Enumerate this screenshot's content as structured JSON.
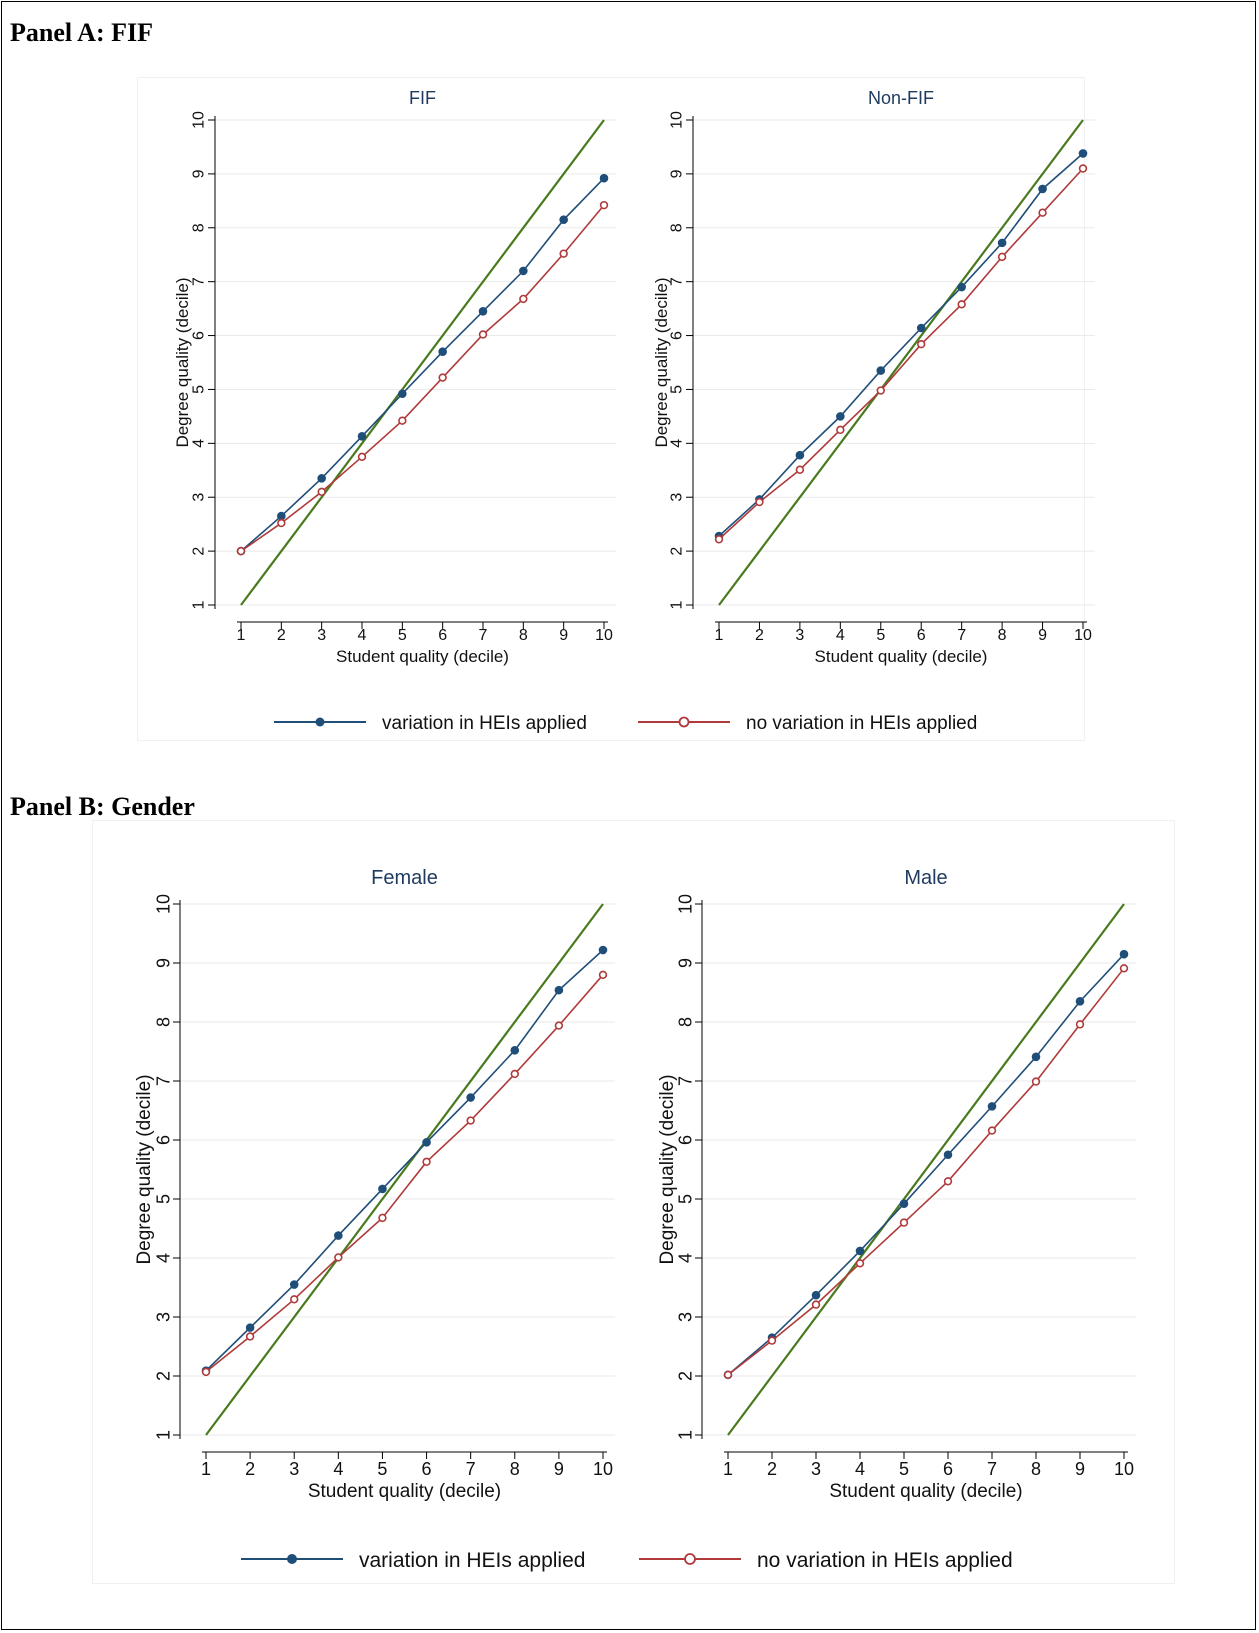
{
  "panels": [
    {
      "heading": "Panel A: FIF",
      "legend": {
        "series1": "variation in HEIs applied",
        "series2": "no variation in HEIs applied"
      }
    },
    {
      "heading": "Panel B: Gender",
      "legend": {
        "series1": "variation in HEIs applied",
        "series2": "no variation in HEIs applied"
      }
    }
  ],
  "colors": {
    "variation": "#1f4e79",
    "no_variation": "#b03a3a",
    "diagonal": "#4a7a1e",
    "grid": "#eaeaea",
    "title_text": "#1f3a5f"
  },
  "chart_data": [
    {
      "type": "line",
      "title": "FIF",
      "xlabel": "Student quality (decile)",
      "ylabel": "Degree quality (decile)",
      "xlim": [
        1,
        10
      ],
      "ylim": [
        1,
        10
      ],
      "grid": "horizontal",
      "x": [
        1,
        2,
        3,
        4,
        5,
        6,
        7,
        8,
        9,
        10
      ],
      "series": [
        {
          "name": "variation in HEIs applied",
          "values": [
            2.0,
            2.65,
            3.35,
            4.13,
            4.92,
            5.7,
            6.45,
            7.2,
            8.15,
            8.92
          ]
        },
        {
          "name": "no variation in HEIs applied",
          "values": [
            2.0,
            2.52,
            3.1,
            3.75,
            4.42,
            5.22,
            6.02,
            6.68,
            7.52,
            8.42
          ]
        }
      ],
      "diagonal": [
        1,
        10
      ]
    },
    {
      "type": "line",
      "title": "Non-FIF",
      "xlabel": "Student quality (decile)",
      "ylabel": "Degree quality (decile)",
      "xlim": [
        1,
        10
      ],
      "ylim": [
        1,
        10
      ],
      "grid": "horizontal",
      "x": [
        1,
        2,
        3,
        4,
        5,
        6,
        7,
        8,
        9,
        10
      ],
      "series": [
        {
          "name": "variation in HEIs applied",
          "values": [
            2.28,
            2.96,
            3.78,
            4.5,
            5.35,
            6.14,
            6.9,
            7.72,
            8.72,
            9.38
          ]
        },
        {
          "name": "no variation in HEIs applied",
          "values": [
            2.22,
            2.91,
            3.51,
            4.25,
            4.98,
            5.84,
            6.58,
            7.46,
            8.28,
            9.1
          ]
        }
      ],
      "diagonal": [
        1,
        10
      ]
    },
    {
      "type": "line",
      "title": "Female",
      "xlabel": "Student quality (decile)",
      "ylabel": "Degree quality (decile)",
      "xlim": [
        1,
        10
      ],
      "ylim": [
        1,
        10
      ],
      "grid": "horizontal",
      "x": [
        1,
        2,
        3,
        4,
        5,
        6,
        7,
        8,
        9,
        10
      ],
      "series": [
        {
          "name": "variation in HEIs applied",
          "values": [
            2.09,
            2.82,
            3.55,
            4.38,
            5.17,
            5.96,
            6.72,
            7.52,
            8.54,
            9.22
          ]
        },
        {
          "name": "no variation in HEIs applied",
          "values": [
            2.07,
            2.67,
            3.3,
            4.01,
            4.68,
            5.63,
            6.33,
            7.12,
            7.94,
            8.8
          ]
        }
      ],
      "diagonal": [
        1,
        10
      ]
    },
    {
      "type": "line",
      "title": "Male",
      "xlabel": "Student quality (decile)",
      "ylabel": "Degree quality (decile)",
      "xlim": [
        1,
        10
      ],
      "ylim": [
        1,
        10
      ],
      "grid": "horizontal",
      "x": [
        1,
        2,
        3,
        4,
        5,
        6,
        7,
        8,
        9,
        10
      ],
      "series": [
        {
          "name": "variation in HEIs applied",
          "values": [
            2.02,
            2.65,
            3.37,
            4.12,
            4.92,
            5.75,
            6.57,
            7.41,
            8.35,
            9.15
          ]
        },
        {
          "name": "no variation in HEIs applied",
          "values": [
            2.02,
            2.6,
            3.21,
            3.91,
            4.6,
            5.3,
            6.16,
            6.99,
            7.96,
            8.91
          ]
        }
      ],
      "diagonal": [
        1,
        10
      ]
    }
  ]
}
